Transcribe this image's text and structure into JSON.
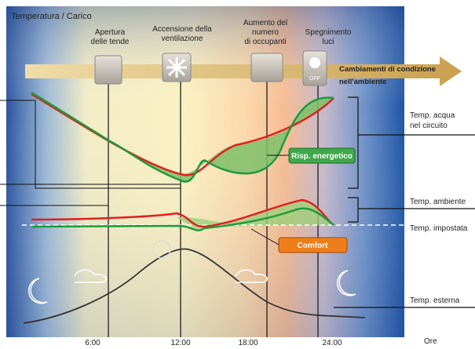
{
  "title": "Temperatura / Carico",
  "events": [
    {
      "lines": [
        "Apertura",
        "delle tende"
      ]
    },
    {
      "lines": [
        "Accensione della",
        "ventilazione"
      ]
    },
    {
      "lines": [
        "Aumento del",
        "numero",
        "di occupanti"
      ]
    },
    {
      "lines": [
        "Spegnimento",
        "luci"
      ]
    }
  ],
  "bulb_label": "OFF",
  "arrow_label": [
    "Cambiamenti di condizione",
    "nell'ambiente"
  ],
  "badges": {
    "saving": "Risp. energetico",
    "comfort": "Comfort"
  },
  "legend": {
    "water": [
      "Temp. acqua",
      "nel circuito"
    ],
    "room": "Temp. ambiente",
    "setpoint": "Temp. impostata",
    "outside": "Temp. esterna"
  },
  "x_labels": [
    "6:00",
    "12:00",
    "18:00",
    "24:00"
  ],
  "x_unit": "Ore"
}
